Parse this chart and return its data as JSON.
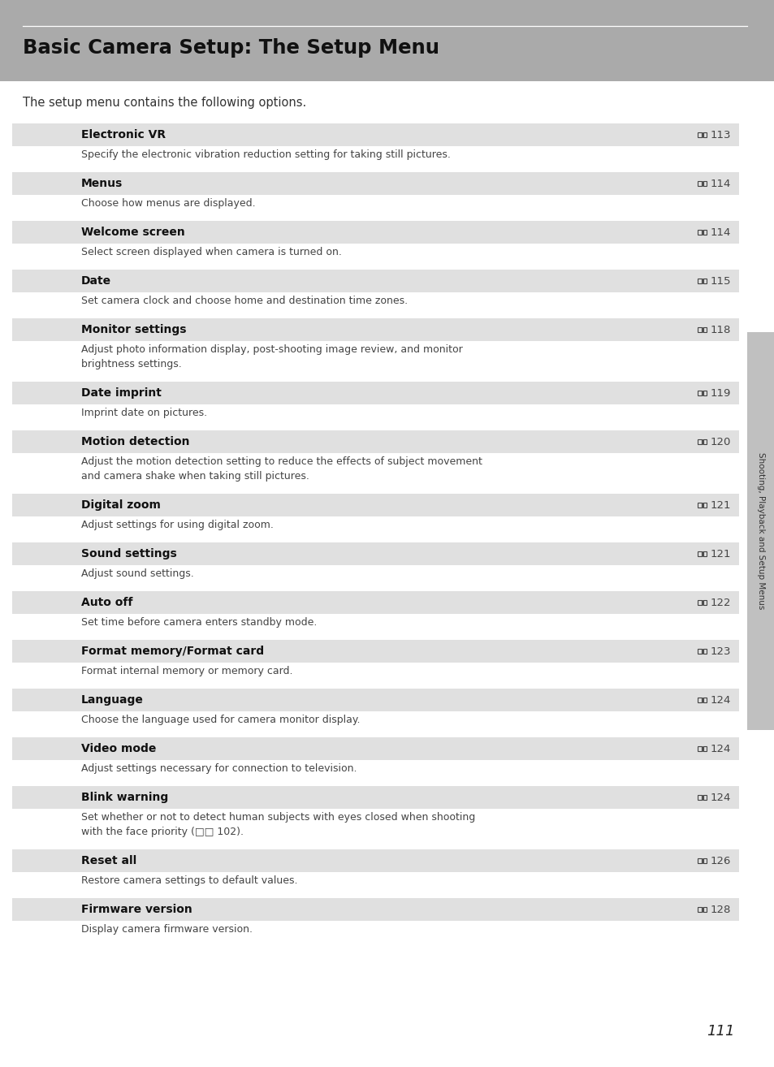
{
  "title": "Basic Camera Setup: The Setup Menu",
  "intro": "The setup menu contains the following options.",
  "page_number": "111",
  "sidebar_text": "Shooting, Playback and Setup Menus",
  "header_bg": "#aaaaaa",
  "row_bg": "#e2e2e2",
  "sidebar_color": "#c8c8c8",
  "rows": [
    {
      "title": "Electronic VR",
      "page": "113",
      "desc": "Specify the electronic vibration reduction setting for taking still pictures.",
      "desc_lines": 1
    },
    {
      "title": "Menus",
      "page": "114",
      "desc": "Choose how menus are displayed.",
      "desc_lines": 1
    },
    {
      "title": "Welcome screen",
      "page": "114",
      "desc": "Select screen displayed when camera is turned on.",
      "desc_lines": 1
    },
    {
      "title": "Date",
      "page": "115",
      "desc": "Set camera clock and choose home and destination time zones.",
      "desc_lines": 1
    },
    {
      "title": "Monitor settings",
      "page": "118",
      "desc": "Adjust photo information display, post-shooting image review, and monitor\nbrightness settings.",
      "desc_lines": 2
    },
    {
      "title": "Date imprint",
      "page": "119",
      "desc": "Imprint date on pictures.",
      "desc_lines": 1
    },
    {
      "title": "Motion detection",
      "page": "120",
      "desc": "Adjust the motion detection setting to reduce the effects of subject movement\nand camera shake when taking still pictures.",
      "desc_lines": 2
    },
    {
      "title": "Digital zoom",
      "page": "121",
      "desc": "Adjust settings for using digital zoom.",
      "desc_lines": 1
    },
    {
      "title": "Sound settings",
      "page": "121",
      "desc": "Adjust sound settings.",
      "desc_lines": 1
    },
    {
      "title": "Auto off",
      "page": "122",
      "desc": "Set time before camera enters standby mode.",
      "desc_lines": 1
    },
    {
      "title": "Format memory/Format card",
      "page": "123",
      "desc": "Format internal memory or memory card.",
      "desc_lines": 1
    },
    {
      "title": "Language",
      "page": "124",
      "desc": "Choose the language used for camera monitor display.",
      "desc_lines": 1
    },
    {
      "title": "Video mode",
      "page": "124",
      "desc": "Adjust settings necessary for connection to television.",
      "desc_lines": 1
    },
    {
      "title": "Blink warning",
      "page": "124",
      "desc": "Set whether or not to detect human subjects with eyes closed when shooting\nwith the face priority (□□ 102).",
      "desc_lines": 2
    },
    {
      "title": "Reset all",
      "page": "126",
      "desc": "Restore camera settings to default values.",
      "desc_lines": 1
    },
    {
      "title": "Firmware version",
      "page": "128",
      "desc": "Display camera firmware version.",
      "desc_lines": 1
    }
  ]
}
